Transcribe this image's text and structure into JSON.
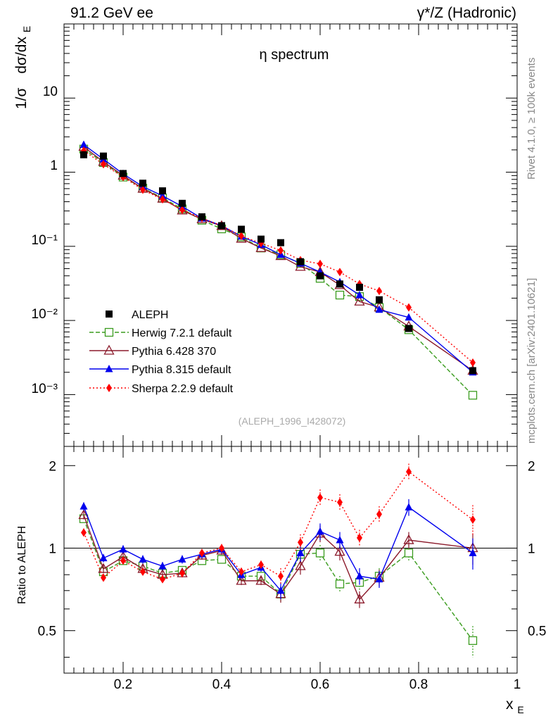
{
  "header": {
    "left_title": "91.2 GeV ee",
    "right_title": "γ*/Z (Hadronic)"
  },
  "side_labels": {
    "rivet": "Rivet 4.1.0, ≥ 100k events",
    "mcplots": "mcplots.cern.ch [arXiv:2401.10621]"
  },
  "colors": {
    "aleph": "#000000",
    "herwig": "#3a9c1e",
    "pythia6": "#8b1a2b",
    "pythia8": "#0000ee",
    "sherpa": "#ff0000"
  },
  "chart_data": [
    {
      "type": "line",
      "scale": "log",
      "title": "η spectrum",
      "ylabel_prefix": "1/σ",
      "ylabel": "dσ/dx",
      "ylabel_sub": "E",
      "analysis_tag": "(ALEPH_1996_I428072)",
      "xlim": [
        0.08,
        1.0
      ],
      "ylim": [
        0.0002,
        100
      ],
      "ytick_labels": {
        "t10": "10",
        "t1": "1",
        "t01": "10⁻¹",
        "t001": "10⁻²",
        "t0001": "10⁻³"
      },
      "x": [
        0.12,
        0.16,
        0.2,
        0.24,
        0.28,
        0.32,
        0.36,
        0.4,
        0.44,
        0.48,
        0.52,
        0.56,
        0.6,
        0.64,
        0.68,
        0.72,
        0.78,
        0.91
      ],
      "series": [
        {
          "name": "ALEPH",
          "key": "aleph",
          "values": [
            1.72,
            1.65,
            0.96,
            0.71,
            0.56,
            0.38,
            0.25,
            0.19,
            0.17,
            0.125,
            0.112,
            0.062,
            0.04,
            0.031,
            0.028,
            0.019,
            0.0078,
            0.0021
          ]
        },
        {
          "name": "Herwig 7.2.1 default",
          "key": "herwig",
          "values": [
            2.05,
            1.35,
            0.86,
            0.61,
            0.45,
            0.32,
            0.225,
            0.172,
            0.134,
            0.095,
            0.077,
            0.059,
            0.037,
            0.022,
            0.021,
            0.015,
            0.0075,
            0.00098
          ]
        },
        {
          "name": "Pythia 6.428 370",
          "key": "pythia6",
          "values": [
            2.2,
            1.38,
            0.9,
            0.6,
            0.44,
            0.305,
            0.232,
            0.188,
            0.127,
            0.095,
            0.074,
            0.053,
            0.045,
            0.03,
            0.018,
            0.015,
            0.0083,
            0.0021
          ]
        },
        {
          "name": "Pythia 8.315 default",
          "key": "pythia8",
          "values": [
            2.35,
            1.5,
            0.95,
            0.64,
            0.48,
            0.345,
            0.238,
            0.19,
            0.136,
            0.105,
            0.077,
            0.059,
            0.045,
            0.033,
            0.022,
            0.014,
            0.011,
            0.002
          ]
        },
        {
          "name": "Sherpa 2.2.9 default",
          "key": "sherpa",
          "values": [
            1.95,
            1.28,
            0.86,
            0.58,
            0.43,
            0.31,
            0.24,
            0.19,
            0.138,
            0.11,
            0.088,
            0.065,
            0.058,
            0.045,
            0.031,
            0.025,
            0.015,
            0.0027
          ]
        }
      ]
    },
    {
      "type": "line",
      "ylabel": "Ratio to ALEPH",
      "xlabel": "x",
      "xlabel_sub": "E",
      "xlim": [
        0.08,
        1.0
      ],
      "ylim": [
        0.35,
        2.35
      ],
      "xticks": [
        0.2,
        0.4,
        0.6,
        0.8,
        1.0
      ],
      "xtick_labels": [
        "0.2",
        "0.4",
        "0.6",
        "0.8",
        "1"
      ],
      "yticks": [
        0.5,
        1,
        2
      ],
      "ytick_labels": [
        "0.5",
        "1",
        "2"
      ],
      "x": [
        0.12,
        0.16,
        0.2,
        0.24,
        0.28,
        0.32,
        0.36,
        0.4,
        0.44,
        0.48,
        0.52,
        0.56,
        0.6,
        0.64,
        0.68,
        0.72,
        0.78,
        0.91
      ],
      "series": [
        {
          "name": "Herwig 7.2.1 default",
          "key": "herwig",
          "values": [
            1.28,
            0.82,
            0.9,
            0.86,
            0.81,
            0.83,
            0.9,
            0.91,
            0.79,
            0.79,
            0.68,
            0.95,
            0.96,
            0.74,
            0.75,
            0.79,
            0.96,
            0.46
          ]
        },
        {
          "name": "Pythia 6.428 370",
          "key": "pythia6",
          "values": [
            1.32,
            0.84,
            0.93,
            0.84,
            0.8,
            0.81,
            0.94,
            0.98,
            0.76,
            0.76,
            0.68,
            0.86,
            1.13,
            0.97,
            0.65,
            0.78,
            1.07,
            1.0
          ]
        },
        {
          "name": "Pythia 8.315 default",
          "key": "pythia8",
          "values": [
            1.42,
            0.92,
            0.99,
            0.91,
            0.86,
            0.91,
            0.95,
            0.99,
            0.8,
            0.85,
            0.7,
            0.96,
            1.15,
            1.07,
            0.79,
            0.77,
            1.41,
            0.96
          ]
        },
        {
          "name": "Sherpa 2.2.9 default",
          "key": "sherpa",
          "values": [
            1.14,
            0.78,
            0.9,
            0.82,
            0.77,
            0.81,
            0.96,
            1.0,
            0.82,
            0.87,
            0.79,
            1.05,
            1.53,
            1.47,
            1.09,
            1.33,
            1.9,
            1.27
          ]
        }
      ]
    }
  ]
}
